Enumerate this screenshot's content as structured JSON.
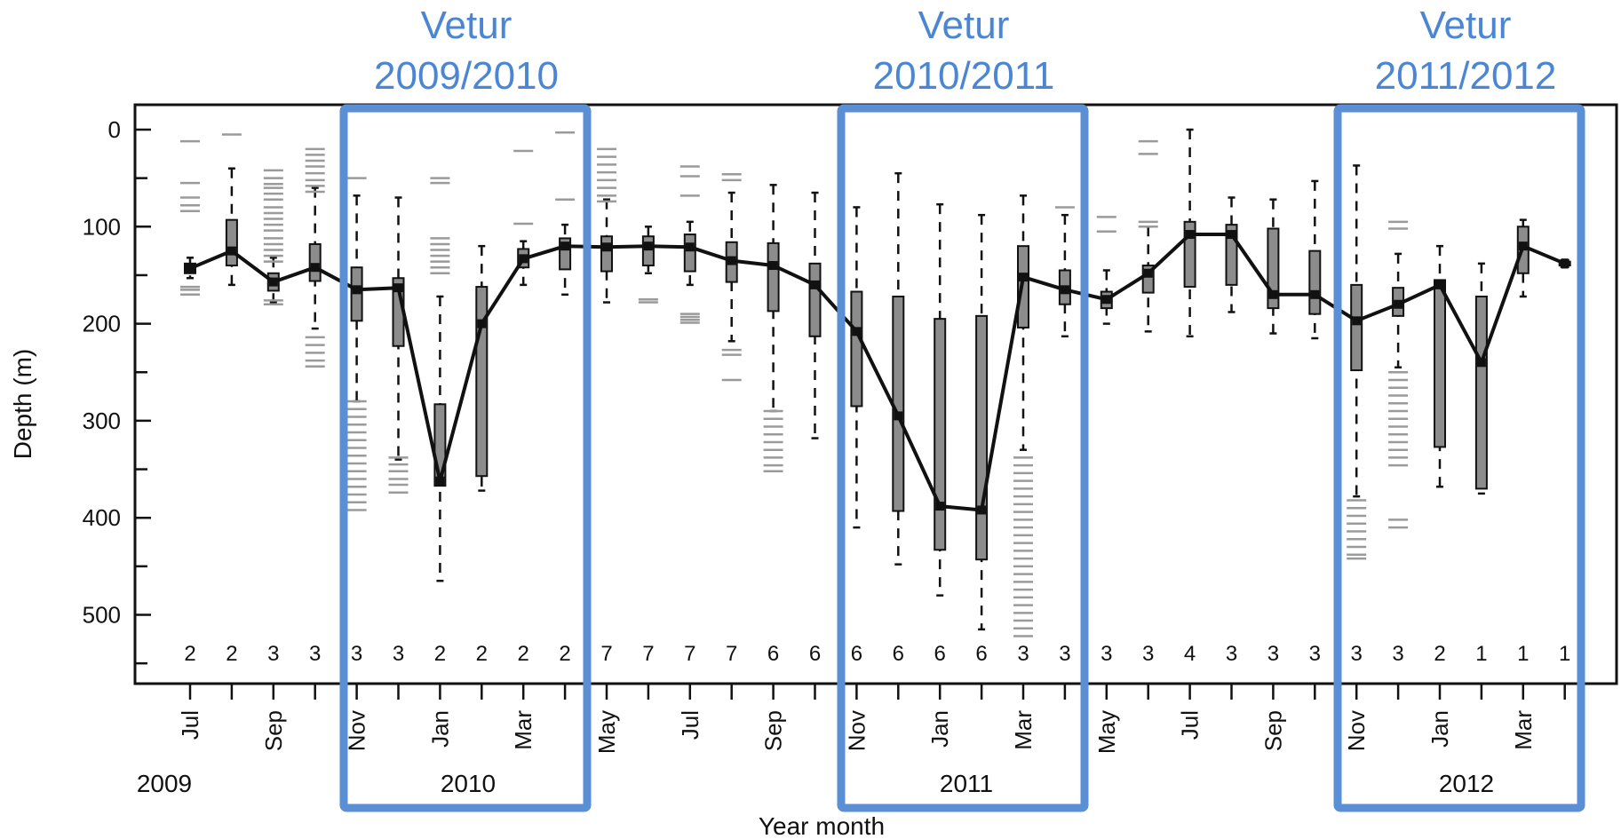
{
  "chart_data": {
    "type": "box",
    "xlabel": "Year month",
    "ylabel": "Depth (m)",
    "ylim": [
      0,
      565
    ],
    "y_inverted": true,
    "yticks": [
      0,
      100,
      200,
      300,
      400,
      500
    ],
    "month_labels": [
      "Jul",
      "Sep",
      "Nov",
      "Jan",
      "Mar",
      "May",
      "Jul",
      "Sep",
      "Nov",
      "Jan",
      "Mar",
      "May",
      "Jul",
      "Sep",
      "Nov",
      "Jan",
      "Mar"
    ],
    "year_labels": [
      "2009",
      "2010",
      "2011",
      "2012"
    ],
    "winter_labels": [
      {
        "line1": "Vetur",
        "line2": "2009/2010"
      },
      {
        "line1": "Vetur",
        "line2": "2010/2011"
      },
      {
        "line1": "Vetur",
        "line2": "2011/2012"
      }
    ],
    "counts": [
      "2",
      "2",
      "3",
      "3",
      "3",
      "3",
      "2",
      "2",
      "2",
      "2",
      "7",
      "7",
      "7",
      "7",
      "6",
      "6",
      "6",
      "6",
      "6",
      "6",
      "3",
      "3",
      "3",
      "3",
      "4",
      "3",
      "3",
      "3",
      "3",
      "3",
      "2",
      "1",
      "1",
      "1"
    ],
    "median_depths": [
      143,
      125,
      157,
      142,
      165,
      163,
      362,
      200,
      133,
      120,
      121,
      120,
      121,
      135,
      140,
      160,
      208,
      295,
      388,
      392,
      152,
      165,
      175,
      148,
      108,
      108,
      170,
      170,
      197,
      180,
      160,
      240,
      120,
      138
    ],
    "boxes": [
      {
        "q1": 138,
        "q3": 148,
        "wlo": 132,
        "whi": 153
      },
      {
        "q1": 93,
        "q3": 140,
        "wlo": 40,
        "whi": 160
      },
      {
        "q1": 148,
        "q3": 166,
        "wlo": 132,
        "whi": 178
      },
      {
        "q1": 118,
        "q3": 156,
        "wlo": 60,
        "whi": 205
      },
      {
        "q1": 142,
        "q3": 197,
        "wlo": 68,
        "whi": 280
      },
      {
        "q1": 153,
        "q3": 223,
        "wlo": 70,
        "whi": 340
      },
      {
        "q1": 283,
        "q3": 367,
        "wlo": 172,
        "whi": 465
      },
      {
        "q1": 162,
        "q3": 357,
        "wlo": 120,
        "whi": 372
      },
      {
        "q1": 123,
        "q3": 142,
        "wlo": 115,
        "whi": 160
      },
      {
        "q1": 112,
        "q3": 144,
        "wlo": 98,
        "whi": 170
      },
      {
        "q1": 110,
        "q3": 146,
        "wlo": 72,
        "whi": 178
      },
      {
        "q1": 110,
        "q3": 140,
        "wlo": 100,
        "whi": 148
      },
      {
        "q1": 108,
        "q3": 146,
        "wlo": 95,
        "whi": 160
      },
      {
        "q1": 116,
        "q3": 157,
        "wlo": 65,
        "whi": 218
      },
      {
        "q1": 117,
        "q3": 187,
        "wlo": 57,
        "whi": 290
      },
      {
        "q1": 138,
        "q3": 213,
        "wlo": 65,
        "whi": 318
      },
      {
        "q1": 167,
        "q3": 285,
        "wlo": 80,
        "whi": 410
      },
      {
        "q1": 172,
        "q3": 393,
        "wlo": 45,
        "whi": 448
      },
      {
        "q1": 195,
        "q3": 433,
        "wlo": 77,
        "whi": 480
      },
      {
        "q1": 192,
        "q3": 443,
        "wlo": 88,
        "whi": 515
      },
      {
        "q1": 120,
        "q3": 204,
        "wlo": 68,
        "whi": 330
      },
      {
        "q1": 145,
        "q3": 180,
        "wlo": 88,
        "whi": 213
      },
      {
        "q1": 167,
        "q3": 184,
        "wlo": 145,
        "whi": 200
      },
      {
        "q1": 140,
        "q3": 168,
        "wlo": 100,
        "whi": 208
      },
      {
        "q1": 95,
        "q3": 162,
        "wlo": 0,
        "whi": 213
      },
      {
        "q1": 98,
        "q3": 160,
        "wlo": 70,
        "whi": 188
      },
      {
        "q1": 102,
        "q3": 184,
        "wlo": 72,
        "whi": 210
      },
      {
        "q1": 125,
        "q3": 190,
        "wlo": 53,
        "whi": 215
      },
      {
        "q1": 160,
        "q3": 248,
        "wlo": 37,
        "whi": 378
      },
      {
        "q1": 163,
        "q3": 192,
        "wlo": 128,
        "whi": 245
      },
      {
        "q1": 155,
        "q3": 327,
        "wlo": 120,
        "whi": 368
      },
      {
        "q1": 172,
        "q3": 370,
        "wlo": 138,
        "whi": 375
      },
      {
        "q1": 100,
        "q3": 148,
        "wlo": 93,
        "whi": 172
      },
      {
        "q1": 136,
        "q3": 140,
        "wlo": 134,
        "whi": 142
      }
    ],
    "outliers": [
      [
        12,
        55,
        70,
        78,
        84,
        162,
        165,
        170
      ],
      [
        5
      ],
      [
        42,
        50,
        56,
        60,
        66,
        72,
        80,
        86,
        92,
        98,
        104,
        112,
        118,
        124,
        130,
        136,
        176,
        180
      ],
      [
        20,
        26,
        32,
        38,
        45,
        52,
        58,
        64,
        214,
        222,
        230,
        238,
        244
      ],
      [
        50,
        280,
        288,
        296,
        304,
        312,
        320,
        328,
        336,
        344,
        352,
        360,
        368,
        376,
        384,
        392
      ],
      [
        338,
        345,
        352,
        360,
        366,
        374
      ],
      [
        50,
        55,
        112,
        118,
        124,
        130,
        136,
        142,
        148
      ],
      [],
      [
        22,
        97
      ],
      [
        3,
        72
      ],
      [
        20,
        28,
        36,
        44,
        52,
        60,
        68,
        74
      ],
      [
        175,
        178
      ],
      [
        38,
        48,
        68,
        190,
        193,
        196,
        199
      ],
      [
        46,
        52,
        227,
        232,
        258
      ],
      [
        290,
        298,
        306,
        314,
        322,
        330,
        338,
        346,
        352
      ],
      [],
      [],
      [],
      [],
      [],
      [
        338,
        346,
        354,
        362,
        370,
        378,
        386,
        394,
        402,
        410,
        418,
        426,
        434,
        442,
        450,
        458,
        466,
        474,
        482,
        490,
        498,
        506,
        514,
        522
      ],
      [
        80
      ],
      [
        90,
        105
      ],
      [
        12,
        25,
        95,
        100
      ],
      [],
      [],
      [],
      [],
      [
        382,
        390,
        398,
        406,
        414,
        422,
        430,
        438,
        442
      ],
      [
        95,
        102,
        250,
        258,
        266,
        274,
        282,
        290,
        298,
        306,
        314,
        322,
        330,
        338,
        346,
        402,
        410
      ],
      [],
      [],
      [],
      []
    ]
  }
}
